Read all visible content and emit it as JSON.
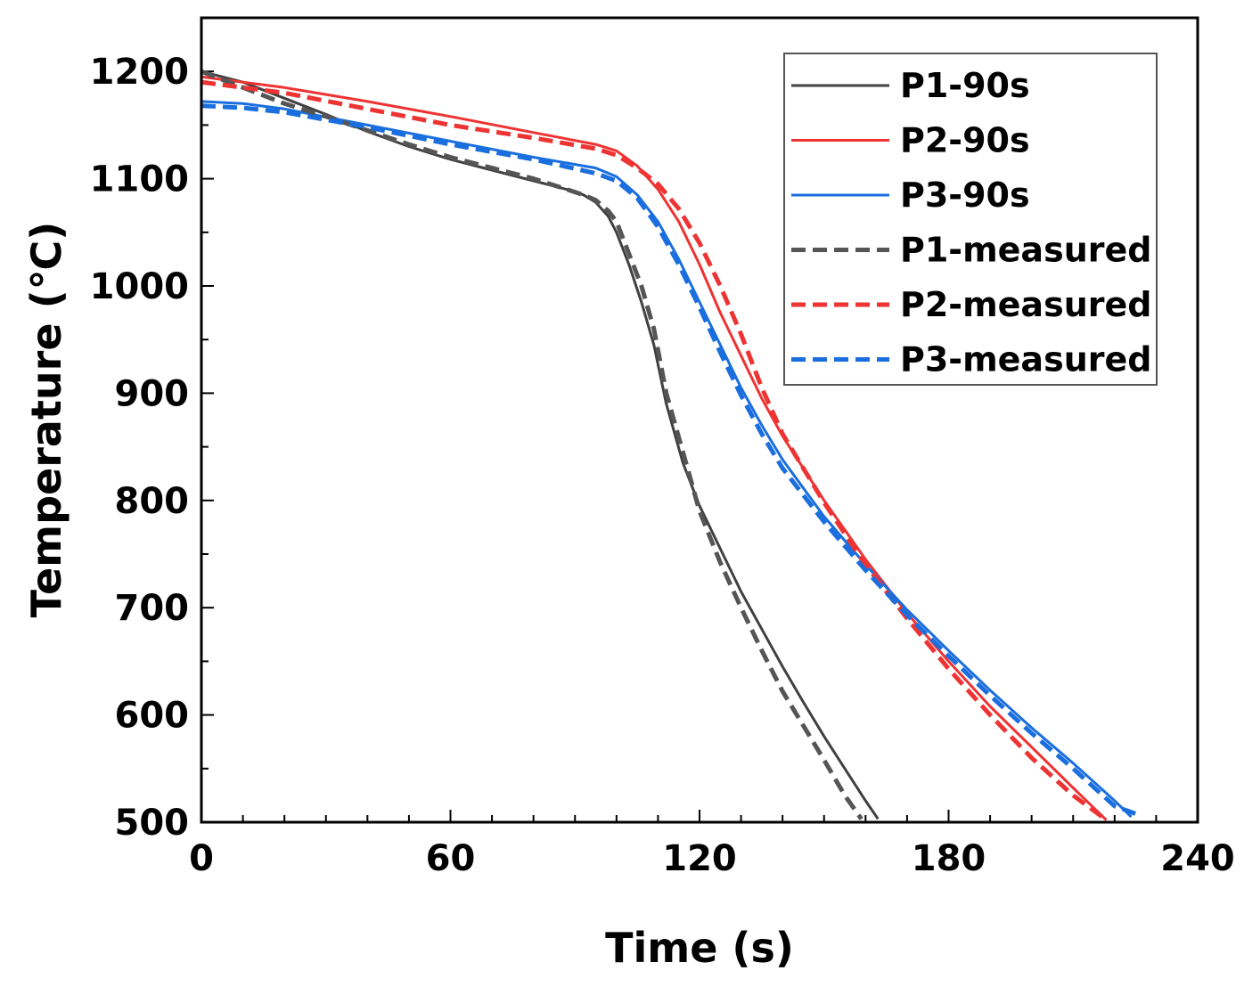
{
  "chart_data": {
    "type": "line",
    "xlabel": "Time (s)",
    "ylabel": "Temperature (℃)",
    "xlim": [
      0,
      240
    ],
    "ylim": [
      500,
      1250
    ],
    "xticks": [
      0,
      60,
      120,
      180,
      240
    ],
    "xtick_labels": [
      "0",
      "60",
      "120",
      "180",
      "240"
    ],
    "yticks": [
      500,
      600,
      700,
      800,
      900,
      1000,
      1100,
      1200
    ],
    "ytick_labels": [
      "500",
      "600",
      "700",
      "800",
      "900",
      "1000",
      "1100",
      "1200"
    ],
    "grid": false,
    "legend_position": "top-right",
    "series": [
      {
        "name": "P1-90s",
        "color": "#404040",
        "style": "solid",
        "x": [
          0,
          10,
          20,
          30,
          40,
          50,
          60,
          70,
          80,
          88,
          92,
          95,
          98,
          100,
          103,
          106,
          109,
          112,
          116,
          120,
          125,
          130,
          135,
          140,
          145,
          150,
          155,
          160,
          163
        ],
        "y": [
          1200,
          1190,
          1175,
          1160,
          1144,
          1130,
          1118,
          1108,
          1098,
          1090,
          1085,
          1078,
          1065,
          1050,
          1020,
          985,
          945,
          890,
          835,
          795,
          755,
          715,
          680,
          645,
          612,
          580,
          550,
          520,
          503
        ]
      },
      {
        "name": "P2-90s",
        "color": "#ee3333",
        "style": "solid",
        "x": [
          0,
          20,
          40,
          60,
          80,
          95,
          100,
          105,
          110,
          115,
          120,
          125,
          130,
          135,
          140,
          150,
          160,
          170,
          180,
          190,
          200,
          210,
          218
        ],
        "y": [
          1195,
          1185,
          1172,
          1158,
          1143,
          1132,
          1126,
          1112,
          1090,
          1060,
          1020,
          975,
          935,
          895,
          860,
          800,
          745,
          695,
          650,
          608,
          570,
          532,
          502
        ]
      },
      {
        "name": "P3-90s",
        "color": "#1a6ede",
        "style": "solid",
        "x": [
          0,
          10,
          20,
          40,
          60,
          80,
          95,
          100,
          105,
          110,
          115,
          120,
          125,
          130,
          135,
          140,
          150,
          160,
          170,
          180,
          190,
          200,
          210,
          220,
          224
        ],
        "y": [
          1172,
          1170,
          1165,
          1150,
          1135,
          1120,
          1110,
          1102,
          1085,
          1060,
          1025,
          985,
          945,
          905,
          870,
          838,
          785,
          740,
          698,
          660,
          623,
          588,
          555,
          520,
          505
        ]
      },
      {
        "name": "P1-measured",
        "color": "#555555",
        "style": "dashed",
        "x": [
          0,
          10,
          20,
          30,
          40,
          50,
          60,
          70,
          80,
          88,
          92,
          95,
          98,
          100,
          103,
          106,
          109,
          112,
          116,
          120,
          125,
          130,
          135,
          140,
          145,
          150,
          155,
          159
        ],
        "y": [
          1200,
          1185,
          1170,
          1158,
          1145,
          1132,
          1120,
          1110,
          1100,
          1090,
          1085,
          1080,
          1070,
          1060,
          1030,
          1000,
          960,
          900,
          845,
          790,
          742,
          700,
          660,
          622,
          590,
          558,
          525,
          503
        ]
      },
      {
        "name": "P2-measured",
        "color": "#ee3333",
        "style": "dashed",
        "x": [
          0,
          20,
          40,
          60,
          80,
          95,
          100,
          105,
          110,
          115,
          120,
          125,
          130,
          135,
          140,
          150,
          160,
          170,
          180,
          190,
          200,
          210,
          217
        ],
        "y": [
          1190,
          1180,
          1165,
          1150,
          1138,
          1128,
          1122,
          1110,
          1095,
          1072,
          1040,
          1000,
          955,
          905,
          862,
          798,
          740,
          690,
          643,
          600,
          560,
          525,
          505
        ]
      },
      {
        "name": "P3-measured",
        "color": "#1a6ede",
        "style": "dashed",
        "x": [
          0,
          10,
          20,
          40,
          60,
          80,
          95,
          100,
          105,
          110,
          115,
          120,
          125,
          130,
          135,
          140,
          150,
          160,
          170,
          180,
          190,
          200,
          210,
          220,
          225
        ],
        "y": [
          1168,
          1166,
          1162,
          1148,
          1132,
          1118,
          1105,
          1098,
          1082,
          1055,
          1020,
          980,
          938,
          898,
          862,
          830,
          780,
          735,
          693,
          655,
          618,
          583,
          550,
          515,
          508
        ]
      }
    ]
  }
}
